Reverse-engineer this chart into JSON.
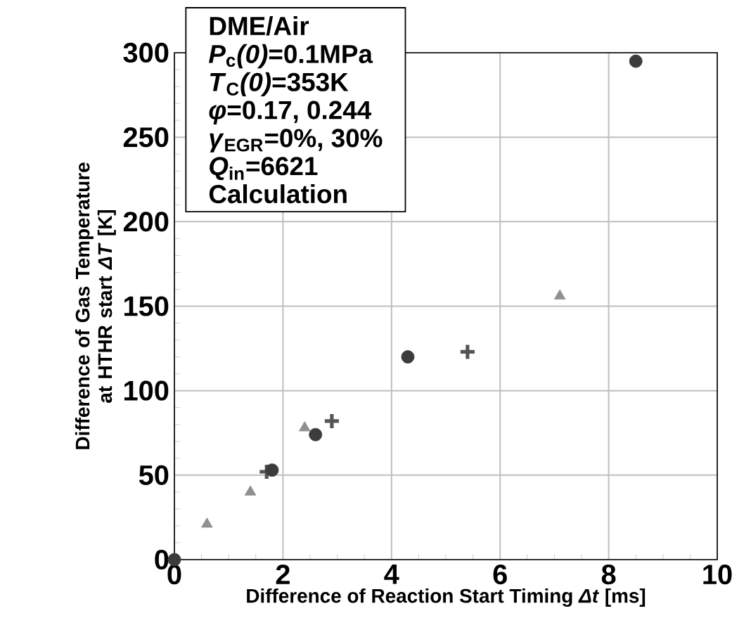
{
  "chart_data": {
    "type": "scatter",
    "xlabel": "Difference of Reaction Start Timing *Δt*  [ms]",
    "ylabel": "Difference of Gas Temperature at HTHR start *ΔT* [K]",
    "xlim": [
      0,
      10
    ],
    "xticks": [
      0,
      2,
      4,
      6,
      8,
      10
    ],
    "ylim": [
      0,
      300
    ],
    "yticks": [
      0,
      50,
      100,
      150,
      200,
      250,
      300
    ],
    "grid": true,
    "annotations": [
      "DME/Air",
      "*P*$_{c}$*(0)*=0.1MPa",
      "*T*$_{C}$*(0)*=353K",
      "*φ*=0.17, 0.244",
      "*γ*$_{EGR}$=0%, 30%",
      "*Q*$_{in}$=6621",
      "Calculation"
    ],
    "series": [
      {
        "color": "#909090",
        "marker": "triangle",
        "x": [
          0.6,
          1.4,
          2.4,
          7.1
        ],
        "values": [
          21,
          40,
          78,
          156
        ]
      },
      {
        "color": "#555555",
        "marker": "cross",
        "x": [
          1.7,
          2.9,
          5.4
        ],
        "values": [
          52,
          82,
          123
        ]
      },
      {
        "color": "#3c3c3c",
        "marker": "circle",
        "x": [
          0,
          1.8,
          2.6,
          4.3,
          8.5
        ],
        "values": [
          0,
          53,
          74,
          120,
          295
        ]
      }
    ]
  }
}
